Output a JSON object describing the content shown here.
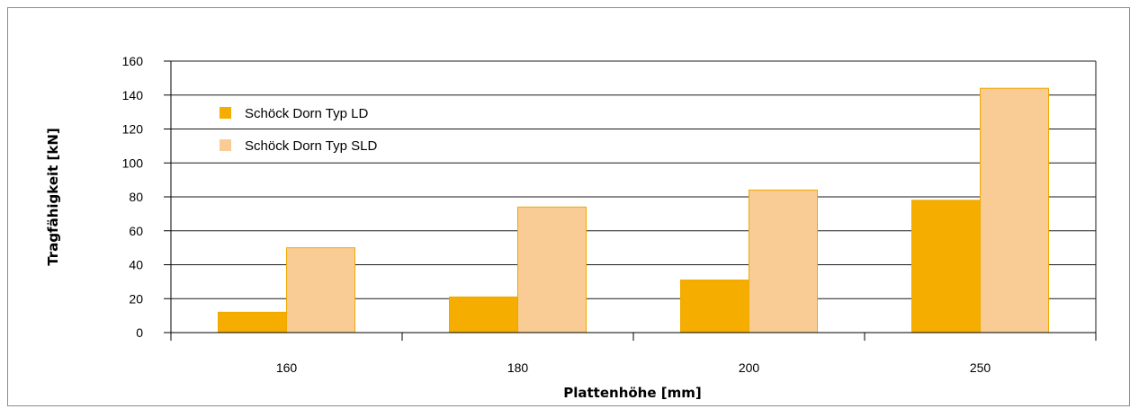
{
  "chart_data": {
    "type": "bar",
    "title": "",
    "xlabel": "Plattenhöhe [mm]",
    "ylabel": "Tragfähigkeit [kN]",
    "categories": [
      "160",
      "180",
      "200",
      "250"
    ],
    "ylim": [
      0,
      160
    ],
    "yticks": [
      "0",
      "20",
      "40",
      "60",
      "80",
      "100",
      "120",
      "140",
      "160"
    ],
    "grid": true,
    "legend_position": "top-left",
    "series": [
      {
        "name": "Schöck Dorn Typ LD",
        "values": [
          12,
          21,
          31,
          78
        ],
        "color": "#f5ad00"
      },
      {
        "name": "Schöck Dorn Typ SLD",
        "values": [
          50,
          74,
          84,
          144
        ],
        "color": "#f8cc94"
      }
    ]
  }
}
